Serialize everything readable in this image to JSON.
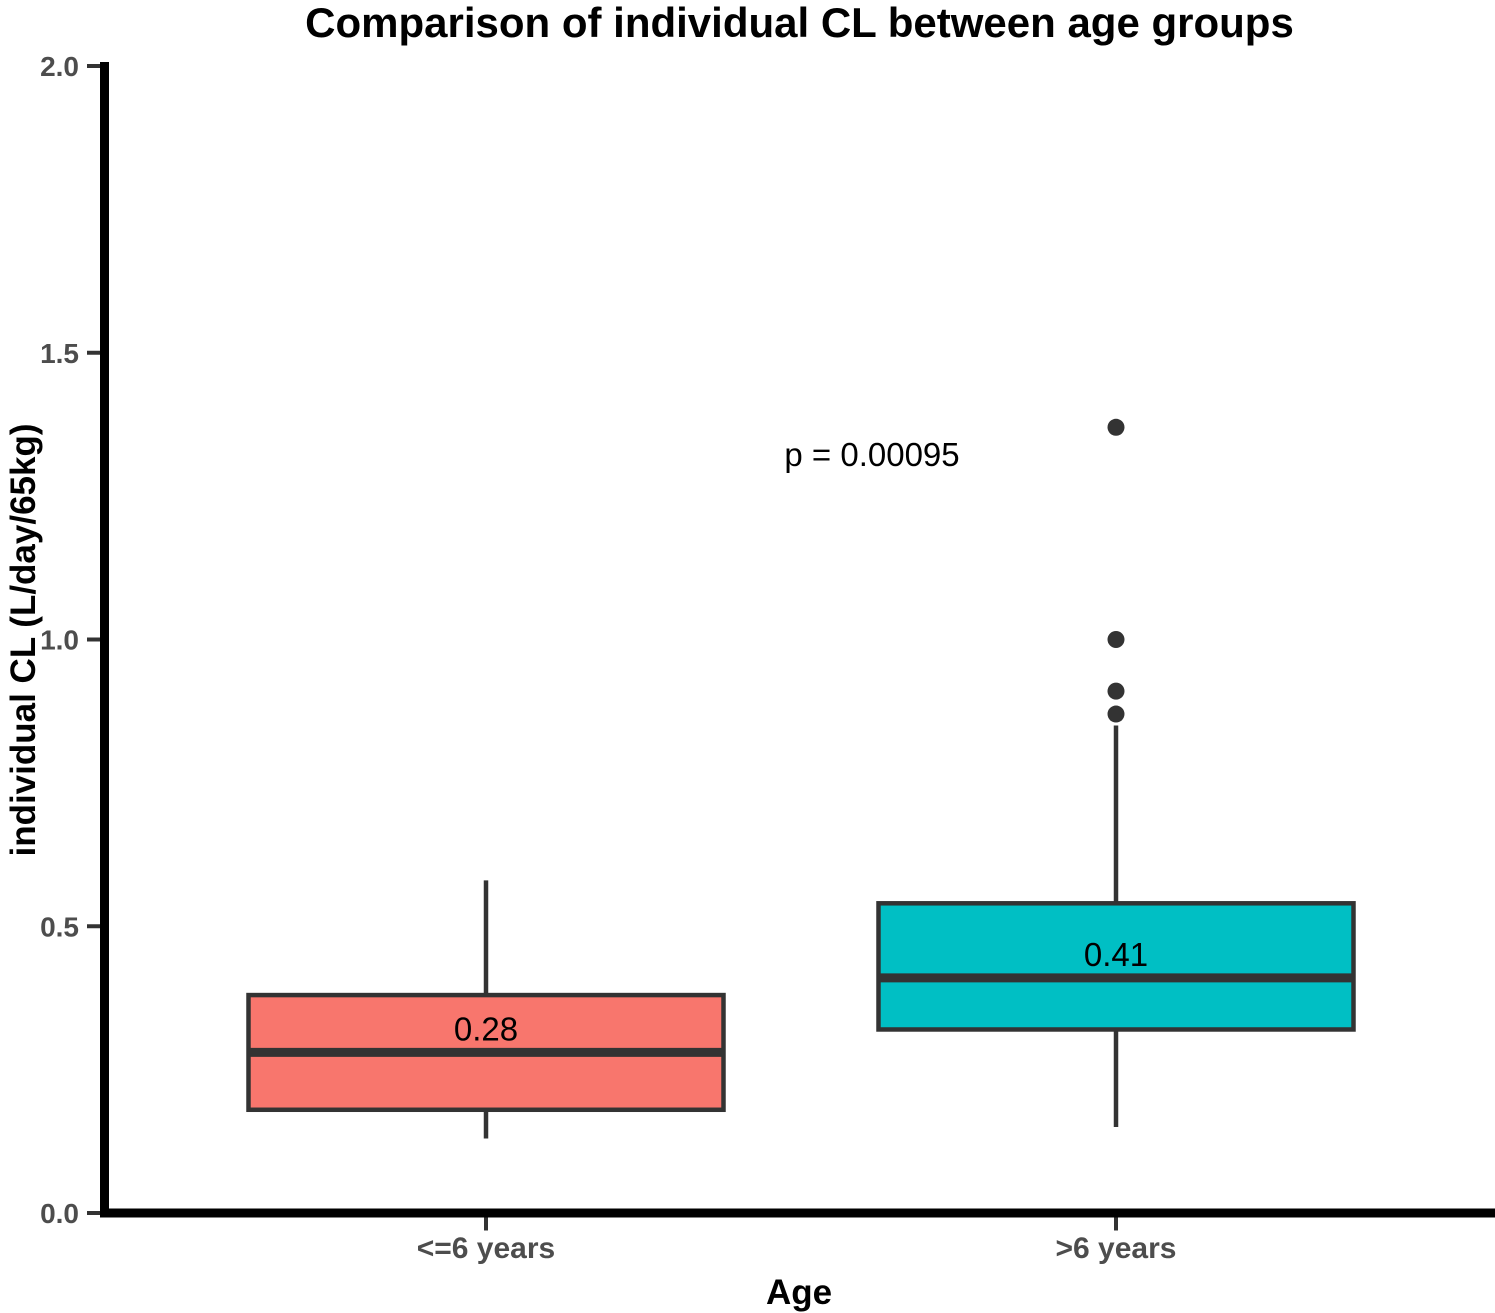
{
  "title": "Comparison of individual CL between age groups",
  "annotation": {
    "p_label": "p = 0.00095"
  },
  "axes": {
    "x_title": "Age",
    "y_title": "individual CL (L/day/65kg)"
  },
  "style": {
    "box_border_color": "#333333",
    "median_line_color": "#333333",
    "whisker_color": "#333333",
    "outlier_color": "#333333",
    "axis_line_color": "#000000",
    "tick_mark_color": "#333333",
    "tick_label_color": "#4d4d4d",
    "title_color": "#000000"
  },
  "chart_data": {
    "type": "boxplot",
    "title": "Comparison of individual CL between age groups",
    "xlabel": "Age",
    "ylabel": "individual CL (L/day/65kg)",
    "ylim": [
      0.0,
      2.0
    ],
    "yticks": [
      0.0,
      0.5,
      1.0,
      1.5,
      2.0
    ],
    "ytick_labels": [
      "0.0",
      "0.5",
      "1.0",
      "1.5",
      "2.0"
    ],
    "grid": false,
    "legend": "none",
    "annotation_text": "p = 0.00095",
    "categories": [
      "<=6 years",
      ">6 years"
    ],
    "groups": [
      {
        "label": "<=6 years",
        "fill_color": "#F8766D",
        "q1": 0.18,
        "median": 0.28,
        "median_label": "0.28",
        "q3": 0.38,
        "whisker_low": 0.13,
        "whisker_high": 0.58,
        "outliers": []
      },
      {
        "label": ">6 years",
        "fill_color": "#00BFC4",
        "q1": 0.32,
        "median": 0.41,
        "median_label": "0.41",
        "q3": 0.54,
        "whisker_low": 0.15,
        "whisker_high": 0.85,
        "outliers": [
          0.87,
          0.91,
          1.0,
          1.37
        ]
      }
    ]
  }
}
